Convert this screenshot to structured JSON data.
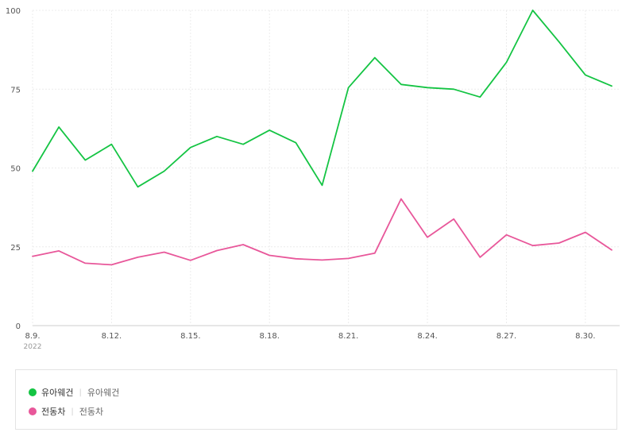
{
  "chart_data": {
    "type": "line",
    "year": "2022",
    "y_ticks": [
      "0",
      "25",
      "50",
      "75",
      "100"
    ],
    "ylim": [
      0,
      100
    ],
    "x_tick_labels": [
      {
        "index": 0,
        "label": "8.9."
      },
      {
        "index": 3,
        "label": "8.12."
      },
      {
        "index": 6,
        "label": "8.15."
      },
      {
        "index": 9,
        "label": "8.18."
      },
      {
        "index": 12,
        "label": "8.21."
      },
      {
        "index": 15,
        "label": "8.24."
      },
      {
        "index": 18,
        "label": "8.27."
      },
      {
        "index": 21,
        "label": "8.30."
      }
    ],
    "x": [
      "8.9.",
      "8.10.",
      "8.11.",
      "8.12.",
      "8.13.",
      "8.14.",
      "8.15.",
      "8.16.",
      "8.17.",
      "8.18.",
      "8.19.",
      "8.20.",
      "8.21.",
      "8.22.",
      "8.23.",
      "8.24.",
      "8.25.",
      "8.26.",
      "8.27.",
      "8.28.",
      "8.29.",
      "8.30.",
      "8.31."
    ],
    "series": [
      {
        "name": "유아웨건",
        "color": "#14c443",
        "values": [
          49,
          63,
          52.5,
          57.5,
          44,
          49,
          56.5,
          60,
          57.5,
          62,
          58,
          44.5,
          75.5,
          85,
          76.5,
          75.5,
          75,
          72.5,
          83.5,
          100,
          90,
          79.5,
          76
        ]
      },
      {
        "name": "전동차",
        "color": "#e8579a",
        "values": [
          22,
          23.7,
          19.8,
          19.3,
          21.7,
          23.3,
          20.7,
          23.8,
          25.7,
          22.3,
          21.2,
          20.8,
          21.3,
          23,
          40.2,
          28,
          33.8,
          21.7,
          28.8,
          25.4,
          26.2,
          29.6,
          24
        ]
      }
    ],
    "grid": true
  },
  "legend": [
    {
      "label": "유아웨건",
      "sub": "유아웨건",
      "color": "#14c443"
    },
    {
      "label": "전동차",
      "sub": "전동차",
      "color": "#e8579a"
    }
  ],
  "legend_separator": "|"
}
